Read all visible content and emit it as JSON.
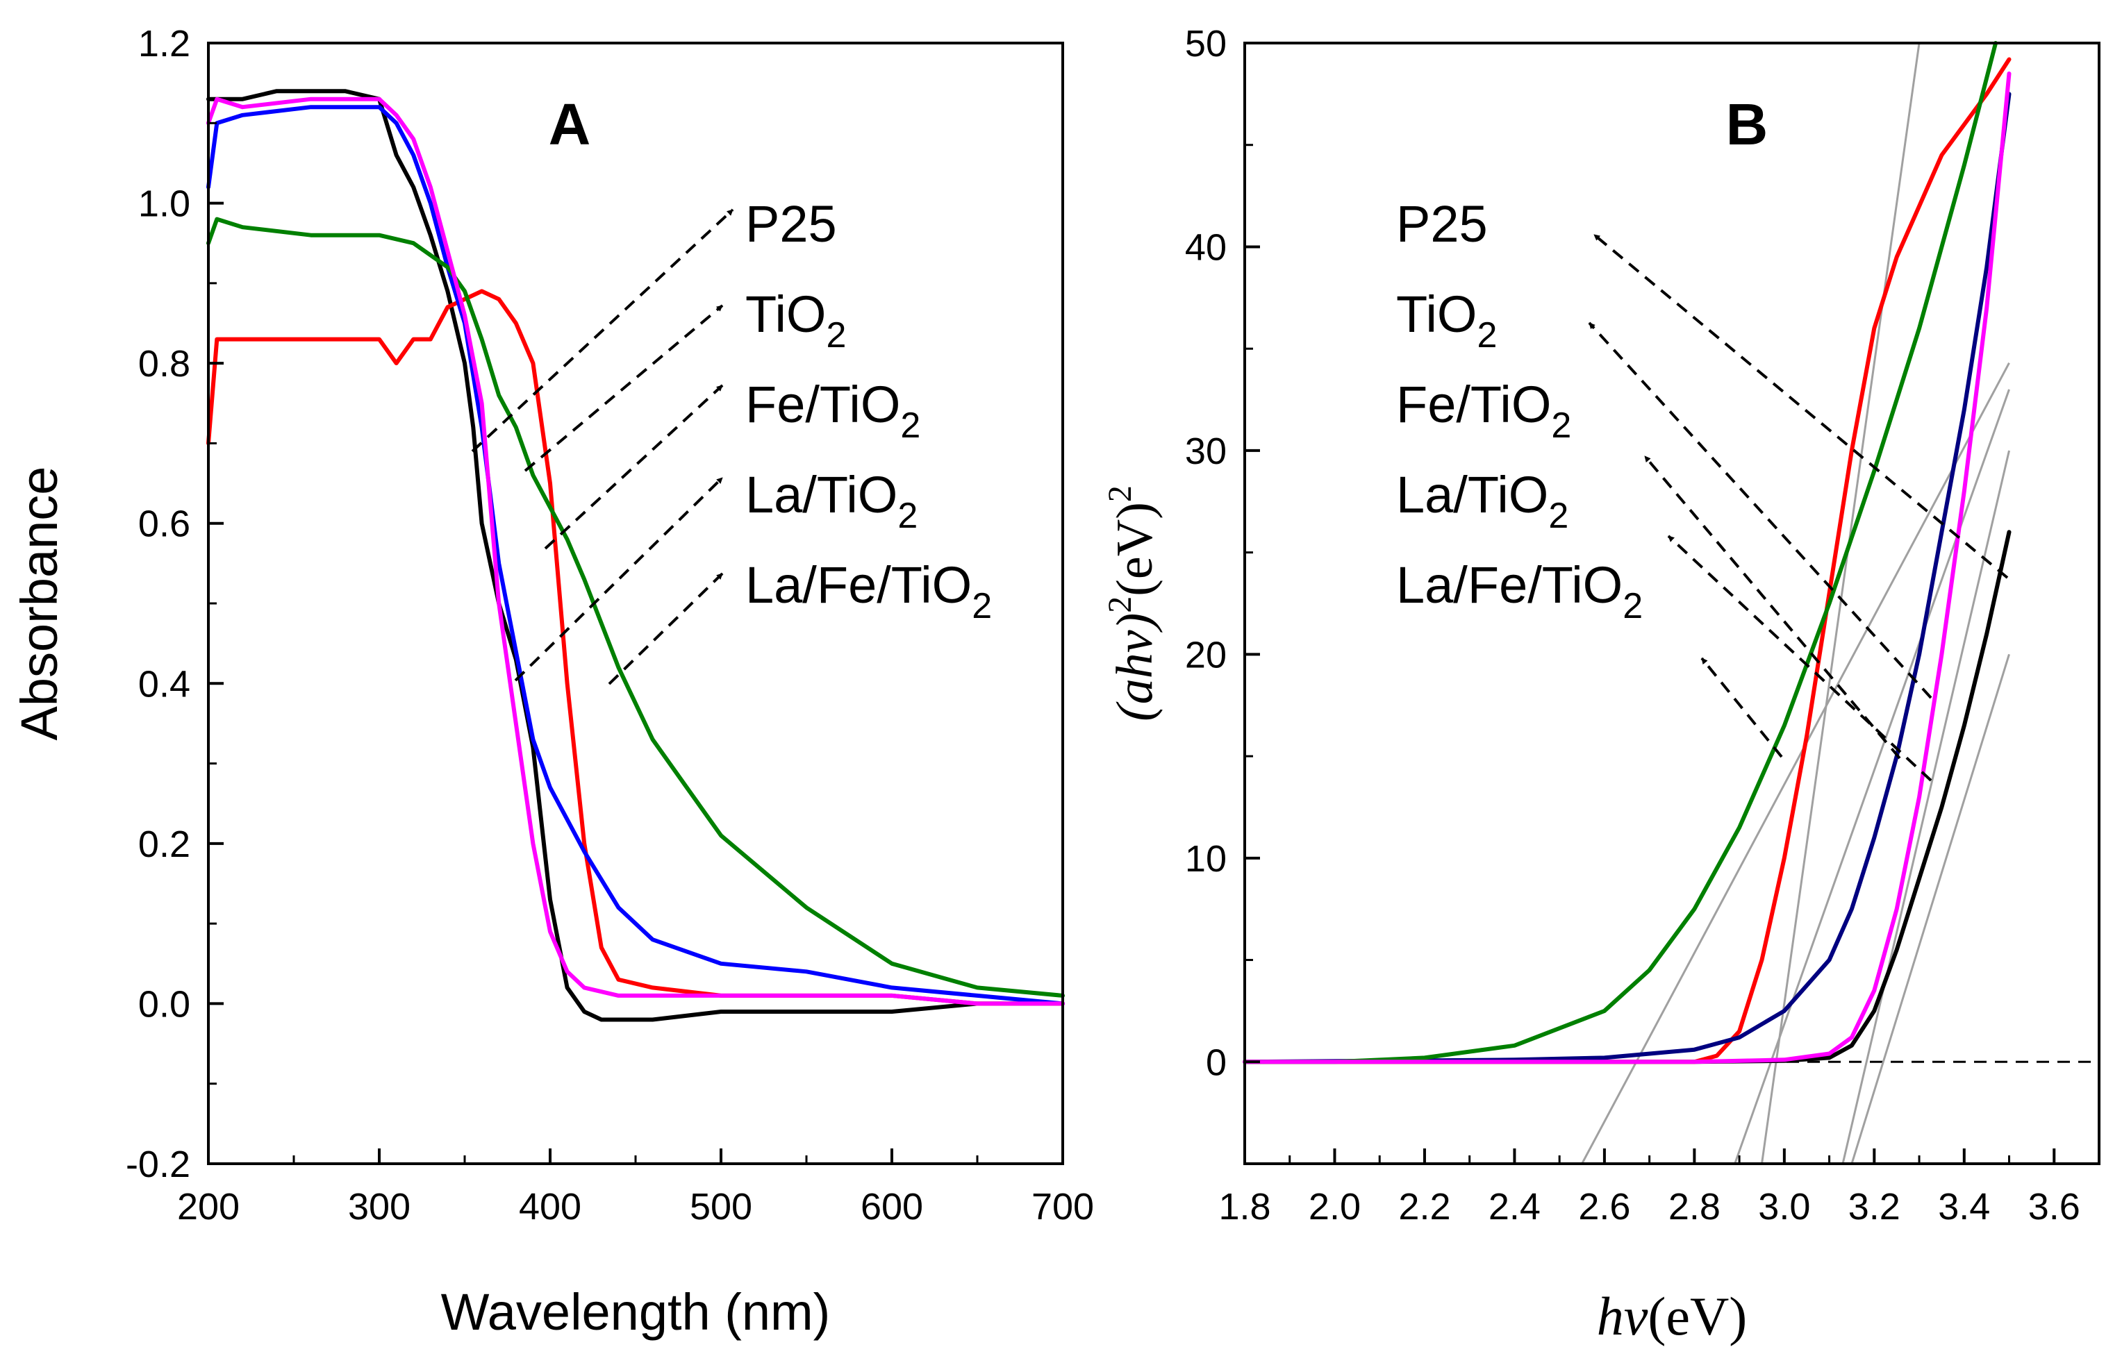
{
  "chart_data": [
    {
      "panel": "A",
      "type": "line",
      "title": "A",
      "xlabel": "Wavelength (nm)",
      "ylabel": "Absorbance",
      "xlim": [
        200,
        700
      ],
      "ylim": [
        -0.2,
        1.2
      ],
      "xticks": [
        200,
        300,
        400,
        500,
        600,
        700
      ],
      "xtick_labels": [
        "200",
        "300",
        "400",
        "500",
        "600",
        "700"
      ],
      "yticks": [
        -0.2,
        0.0,
        0.2,
        0.4,
        0.6,
        0.8,
        1.0,
        1.2
      ],
      "ytick_labels": [
        "-0.2",
        "0.0",
        "0.2",
        "0.4",
        "0.6",
        "0.8",
        "1.0",
        "1.2"
      ],
      "grid": false,
      "labels": [
        {
          "main": "P25",
          "sub": ""
        },
        {
          "main": "TiO",
          "sub": "2"
        },
        {
          "main": "Fe/TiO",
          "sub": "2"
        },
        {
          "main": "La/TiO",
          "sub": "2"
        },
        {
          "main": "La/Fe/TiO",
          "sub": "2"
        }
      ],
      "series": [
        {
          "name": "P25",
          "color": "#000000",
          "x": [
            200,
            220,
            240,
            260,
            280,
            300,
            310,
            320,
            330,
            340,
            350,
            355,
            360,
            370,
            380,
            390,
            400,
            410,
            420,
            430,
            440,
            460,
            500,
            550,
            600,
            650,
            700
          ],
          "y": [
            1.13,
            1.13,
            1.14,
            1.14,
            1.14,
            1.13,
            1.06,
            1.02,
            0.96,
            0.89,
            0.8,
            0.72,
            0.6,
            0.5,
            0.43,
            0.32,
            0.13,
            0.02,
            -0.01,
            -0.02,
            -0.02,
            -0.02,
            -0.01,
            -0.01,
            -0.01,
            0.0,
            0.0
          ]
        },
        {
          "name": "TiO2",
          "color": "#ff0000",
          "x": [
            200,
            205,
            220,
            260,
            300,
            310,
            320,
            330,
            340,
            350,
            360,
            370,
            380,
            390,
            400,
            410,
            420,
            430,
            440,
            460,
            500,
            550,
            600,
            650,
            700
          ],
          "y": [
            0.7,
            0.83,
            0.83,
            0.83,
            0.83,
            0.8,
            0.83,
            0.83,
            0.87,
            0.88,
            0.89,
            0.88,
            0.85,
            0.8,
            0.65,
            0.4,
            0.2,
            0.07,
            0.03,
            0.02,
            0.01,
            0.01,
            0.01,
            0.0,
            0.0
          ]
        },
        {
          "name": "Fe/TiO2",
          "color": "#0000ff",
          "x": [
            200,
            205,
            220,
            260,
            300,
            310,
            320,
            330,
            340,
            350,
            360,
            370,
            380,
            390,
            400,
            420,
            440,
            460,
            500,
            550,
            600,
            650,
            700
          ],
          "y": [
            1.02,
            1.1,
            1.11,
            1.12,
            1.12,
            1.1,
            1.06,
            1.0,
            0.92,
            0.85,
            0.72,
            0.55,
            0.44,
            0.33,
            0.27,
            0.19,
            0.12,
            0.08,
            0.05,
            0.04,
            0.02,
            0.01,
            0.0
          ]
        },
        {
          "name": "La/TiO2",
          "color": "#008000",
          "x": [
            200,
            205,
            220,
            260,
            300,
            320,
            340,
            350,
            360,
            370,
            380,
            390,
            400,
            410,
            420,
            440,
            460,
            480,
            500,
            550,
            600,
            650,
            700
          ],
          "y": [
            0.95,
            0.98,
            0.97,
            0.96,
            0.96,
            0.95,
            0.92,
            0.89,
            0.83,
            0.76,
            0.72,
            0.66,
            0.62,
            0.58,
            0.53,
            0.42,
            0.33,
            0.27,
            0.21,
            0.12,
            0.05,
            0.02,
            0.01
          ]
        },
        {
          "name": "La/Fe/TiO2",
          "color": "#ff00ff",
          "x": [
            200,
            205,
            220,
            260,
            300,
            310,
            320,
            330,
            340,
            350,
            360,
            370,
            380,
            390,
            400,
            410,
            420,
            440,
            460,
            500,
            550,
            600,
            650,
            700
          ],
          "y": [
            1.1,
            1.13,
            1.12,
            1.13,
            1.13,
            1.11,
            1.08,
            1.02,
            0.94,
            0.86,
            0.75,
            0.5,
            0.35,
            0.2,
            0.09,
            0.04,
            0.02,
            0.01,
            0.01,
            0.01,
            0.01,
            0.01,
            0.0,
            0.0
          ]
        }
      ]
    },
    {
      "panel": "B",
      "type": "line",
      "title": "B",
      "xlabel_main": "hv",
      "xlabel_suffix": "(eV)",
      "ylabel_parts": [
        "(ahv)",
        "2",
        "(eV)",
        "2"
      ],
      "xlim": [
        1.8,
        3.7
      ],
      "ylim": [
        -5,
        50
      ],
      "xticks": [
        1.8,
        2.0,
        2.2,
        2.4,
        2.6,
        2.8,
        3.0,
        3.2,
        3.4,
        3.6
      ],
      "xtick_labels": [
        "1.8",
        "2.0",
        "2.2",
        "2.4",
        "2.6",
        "2.8",
        "3.0",
        "3.2",
        "3.4",
        "3.6"
      ],
      "yticks": [
        0,
        10,
        20,
        30,
        40,
        50
      ],
      "ytick_labels": [
        "0",
        "10",
        "20",
        "30",
        "40",
        "50"
      ],
      "grid": false,
      "baseline_y": 0,
      "labels": [
        {
          "main": "P25",
          "sub": ""
        },
        {
          "main": "TiO",
          "sub": "2"
        },
        {
          "main": "Fe/TiO",
          "sub": "2"
        },
        {
          "main": "La/TiO",
          "sub": "2"
        },
        {
          "main": "La/Fe/TiO",
          "sub": "2"
        }
      ],
      "series": [
        {
          "name": "P25",
          "color": "#000000",
          "x": [
            1.8,
            2.8,
            3.0,
            3.1,
            3.15,
            3.2,
            3.25,
            3.3,
            3.35,
            3.4,
            3.45,
            3.5
          ],
          "y": [
            0,
            0,
            0.05,
            0.2,
            0.8,
            2.5,
            5.5,
            9.0,
            12.5,
            16.5,
            21.0,
            26.0
          ]
        },
        {
          "name": "TiO2",
          "color": "#ff0000",
          "x": [
            1.8,
            2.8,
            2.85,
            2.9,
            2.95,
            3.0,
            3.05,
            3.1,
            3.15,
            3.2,
            3.25,
            3.3,
            3.35,
            3.4,
            3.45,
            3.5
          ],
          "y": [
            0,
            0,
            0.3,
            1.5,
            5.0,
            10.0,
            16.0,
            23.0,
            30.0,
            36.0,
            39.5,
            42.0,
            44.5,
            46.0,
            47.5,
            49.2
          ]
        },
        {
          "name": "Fe/TiO2",
          "color": "#000080",
          "x": [
            1.8,
            2.4,
            2.6,
            2.8,
            2.9,
            3.0,
            3.1,
            3.15,
            3.2,
            3.25,
            3.3,
            3.35,
            3.4,
            3.45,
            3.5
          ],
          "y": [
            0,
            0.1,
            0.2,
            0.6,
            1.2,
            2.5,
            5.0,
            7.5,
            11.0,
            15.0,
            20.0,
            26.0,
            32.0,
            39.0,
            47.5
          ]
        },
        {
          "name": "La/TiO2",
          "color": "#008000",
          "x": [
            1.8,
            2.0,
            2.2,
            2.4,
            2.6,
            2.7,
            2.8,
            2.9,
            3.0,
            3.1,
            3.2,
            3.3,
            3.4,
            3.47
          ],
          "y": [
            0,
            0,
            0.2,
            0.8,
            2.5,
            4.5,
            7.5,
            11.5,
            16.5,
            22.5,
            29.0,
            36.0,
            44.0,
            50.0
          ]
        },
        {
          "name": "La/Fe/TiO2",
          "color": "#ff00ff",
          "x": [
            1.8,
            2.8,
            3.0,
            3.1,
            3.15,
            3.2,
            3.25,
            3.3,
            3.35,
            3.4,
            3.45,
            3.5
          ],
          "y": [
            0,
            0,
            0.1,
            0.4,
            1.2,
            3.5,
            7.5,
            13.0,
            20.0,
            28.0,
            37.0,
            48.5
          ]
        }
      ],
      "tangents": [
        {
          "x": [
            2.55,
            3.5
          ],
          "y": [
            -5,
            34.3
          ]
        },
        {
          "x": [
            2.95,
            3.3
          ],
          "y": [
            -5,
            50
          ]
        },
        {
          "x": [
            2.89,
            3.5
          ],
          "y": [
            -5,
            33
          ]
        },
        {
          "x": [
            3.13,
            3.5
          ],
          "y": [
            -5,
            30
          ]
        },
        {
          "x": [
            3.15,
            3.5
          ],
          "y": [
            -5,
            20
          ]
        }
      ]
    }
  ]
}
